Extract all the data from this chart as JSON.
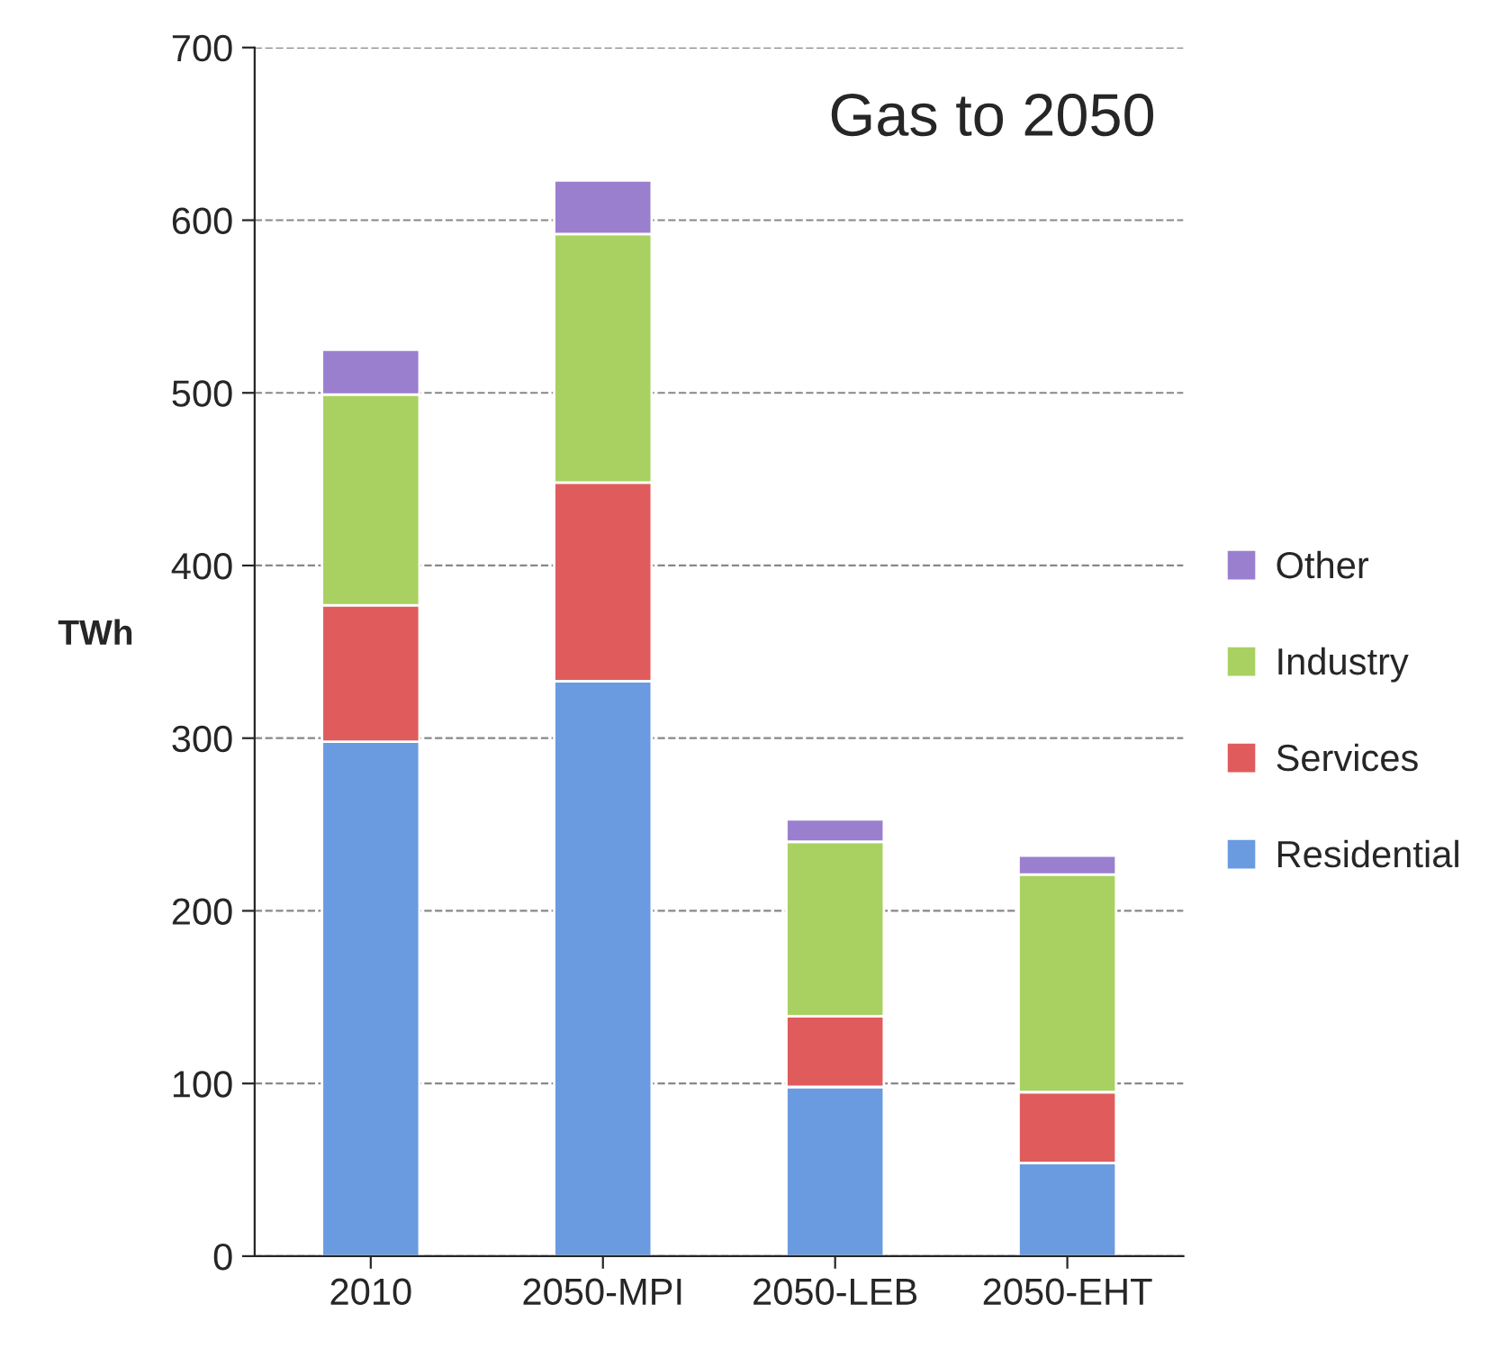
{
  "chart_data": {
    "type": "bar",
    "title": "Gas to 2050",
    "ylabel": "TWh",
    "categories": [
      "2010",
      "2050-MPI",
      "2050-LEB",
      "2050-EHT"
    ],
    "stacked": true,
    "series": [
      {
        "name": "Residential",
        "color": "#6a9be0",
        "values": [
          298,
          333,
          98,
          54
        ]
      },
      {
        "name": "Services",
        "color": "#e05c5c",
        "values": [
          79,
          115,
          41,
          41
        ]
      },
      {
        "name": "Industry",
        "color": "#a9d161",
        "values": [
          122,
          144,
          101,
          126
        ]
      },
      {
        "name": "Other",
        "color": "#9b7fcf",
        "values": [
          26,
          31,
          13,
          11
        ]
      }
    ],
    "ylim": [
      0,
      700
    ],
    "yticks": [
      0,
      100,
      200,
      300,
      400,
      500,
      600,
      700
    ],
    "grid": "y",
    "legend": "right"
  }
}
